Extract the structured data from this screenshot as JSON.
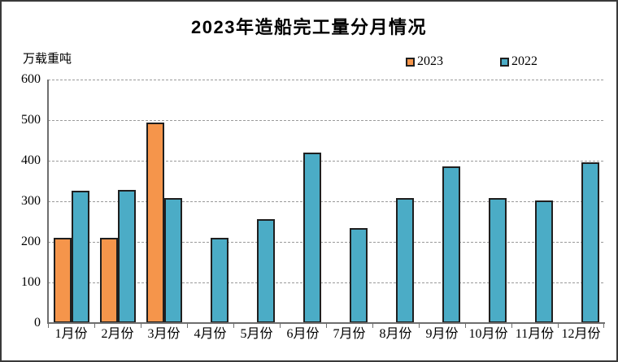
{
  "window": {
    "background": "#ffffff",
    "border_color": "#3a3a3a"
  },
  "header": {
    "title": "2023年造船完工量分月情况"
  },
  "axes": {
    "unit_label": "万载重吨"
  },
  "legend": {
    "items": [
      {
        "label": "2023",
        "color": "#F5954B"
      },
      {
        "label": "2022",
        "color": "#4BACC6"
      }
    ]
  },
  "chart_data": {
    "type": "bar",
    "title": "2023年造船完工量分月情况",
    "ylabel": "万载重吨",
    "categories": [
      "1月份",
      "2月份",
      "3月份",
      "4月份",
      "5月份",
      "6月份",
      "7月份",
      "8月份",
      "9月份",
      "10月份",
      "11月份",
      "12月份"
    ],
    "series": [
      {
        "name": "2023",
        "color": "#F5954B",
        "values": [
          210,
          211,
          494,
          null,
          null,
          null,
          null,
          null,
          null,
          null,
          null,
          null
        ]
      },
      {
        "name": "2022",
        "color": "#4BACC6",
        "values": [
          327,
          328,
          308,
          210,
          257,
          421,
          235,
          309,
          386,
          308,
          303,
          397
        ]
      }
    ],
    "ylim": [
      0,
      600
    ],
    "ytick_step": 100,
    "grid": true,
    "gridline_color": "#9a9a9a",
    "bar_border_color": "#1f1f1f",
    "axis_color": "#6e6e6e",
    "legend_position": "top-right"
  }
}
